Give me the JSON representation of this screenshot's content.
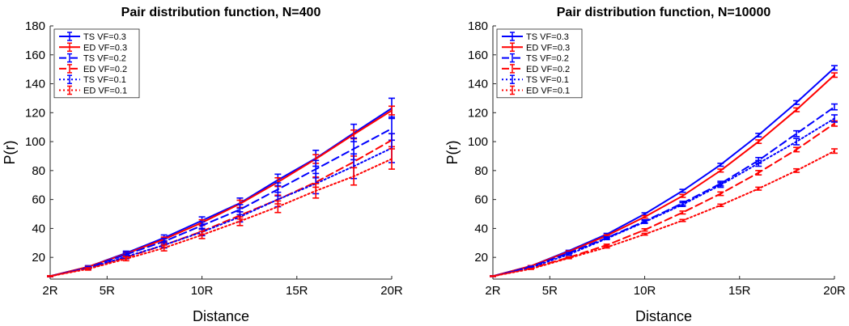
{
  "chart_data": [
    {
      "type": "line",
      "title": "Pair distribution function,  N=400",
      "xlabel": "Distance",
      "ylabel": "P(r)",
      "xlim": [
        2,
        20
      ],
      "ylim": [
        5,
        180
      ],
      "x": [
        2,
        4,
        6,
        8,
        10,
        12,
        14,
        16,
        18,
        20
      ],
      "x_ticks": [
        2,
        5,
        10,
        15,
        20
      ],
      "x_tick_labels": [
        "2R",
        "5R",
        "10R",
        "15R",
        "20R"
      ],
      "y_ticks": [
        20,
        40,
        60,
        80,
        100,
        120,
        140,
        160,
        180
      ],
      "y_tick_labels": [
        "20",
        "40",
        "60",
        "80",
        "100",
        "120",
        "140",
        "160",
        "180"
      ],
      "legend_position": "top-left",
      "series": [
        {
          "name": "TS VF=0.3",
          "color": "#0000ff",
          "style": "solid",
          "values": [
            7,
            13.5,
            23,
            33.5,
            45.5,
            57.5,
            73.5,
            88.5,
            106,
            123
          ],
          "errors": [
            0.3,
            0.8,
            1.3,
            2,
            2.5,
            3.5,
            4,
            5.5,
            6,
            7
          ]
        },
        {
          "name": "ED VF=0.3",
          "color": "#ff0000",
          "style": "solid",
          "values": [
            7,
            13.5,
            22.5,
            32.5,
            44,
            57,
            72,
            88,
            105,
            121.5
          ],
          "errors": [
            0.3,
            0.6,
            1,
            1.5,
            2,
            2.5,
            3,
            3,
            3,
            3
          ]
        },
        {
          "name": "TS VF=0.2",
          "color": "#0000ff",
          "style": "dashed",
          "values": [
            7,
            13,
            22,
            31,
            42,
            53,
            67,
            81,
            95,
            109
          ],
          "errors": [
            0.3,
            0.8,
            1.3,
            2,
            2.5,
            3.5,
            4.5,
            6,
            7.5,
            8
          ]
        },
        {
          "name": "ED VF=0.2",
          "color": "#ff0000",
          "style": "dashed",
          "values": [
            7,
            12.5,
            20,
            28.5,
            38,
            49,
            60,
            72,
            86,
            101
          ],
          "errors": [
            0.3,
            0.6,
            1,
            1.5,
            2,
            2.5,
            3,
            3.5,
            4,
            4.5
          ]
        },
        {
          "name": "TS VF=0.1",
          "color": "#0000ff",
          "style": "dotted",
          "values": [
            7,
            12.5,
            20.5,
            28.5,
            37.5,
            48,
            60,
            71,
            83,
            95.5
          ],
          "errors": [
            0.3,
            0.8,
            1.3,
            2,
            2.5,
            3.5,
            5,
            7,
            8.5,
            10
          ]
        },
        {
          "name": "ED VF=0.1",
          "color": "#ff0000",
          "style": "dotted",
          "values": [
            7,
            12,
            19,
            26.5,
            35.5,
            45,
            55,
            66,
            76,
            88
          ],
          "errors": [
            0.3,
            0.8,
            1.3,
            2,
            2.5,
            3,
            4,
            5,
            6,
            7
          ]
        }
      ]
    },
    {
      "type": "line",
      "title": "Pair distribution function,  N=10000",
      "xlabel": "Distance",
      "ylabel": "P(r)",
      "xlim": [
        2,
        20
      ],
      "ylim": [
        5,
        180
      ],
      "x": [
        2,
        4,
        6,
        8,
        10,
        12,
        14,
        16,
        18,
        20
      ],
      "x_ticks": [
        2,
        5,
        10,
        15,
        20
      ],
      "x_tick_labels": [
        "2R",
        "5R",
        "10R",
        "15R",
        "20R"
      ],
      "y_ticks": [
        20,
        40,
        60,
        80,
        100,
        120,
        140,
        160,
        180
      ],
      "y_tick_labels": [
        "20",
        "40",
        "60",
        "80",
        "100",
        "120",
        "140",
        "160",
        "180"
      ],
      "legend_position": "top-left",
      "series": [
        {
          "name": "TS VF=0.3",
          "color": "#0000ff",
          "style": "solid",
          "values": [
            7,
            14,
            24.5,
            36,
            50,
            66,
            84,
            104.5,
            127,
            151
          ],
          "errors": [
            0.2,
            0.3,
            0.4,
            0.6,
            0.8,
            1,
            1,
            1.2,
            1.3,
            1.5
          ]
        },
        {
          "name": "ED VF=0.3",
          "color": "#ff0000",
          "style": "solid",
          "values": [
            7,
            14,
            24,
            35,
            48,
            62.5,
            80,
            100,
            122,
            146
          ],
          "errors": [
            0.2,
            0.3,
            0.4,
            0.6,
            0.8,
            1,
            1,
            1.2,
            1.3,
            1.5
          ]
        },
        {
          "name": "TS VF=0.2",
          "color": "#0000ff",
          "style": "dashed",
          "values": [
            7,
            13.5,
            23,
            33.5,
            45,
            57.5,
            71,
            87,
            105.5,
            124
          ],
          "errors": [
            0.2,
            0.3,
            0.5,
            0.7,
            1,
            1.3,
            1.6,
            2,
            2,
            2
          ]
        },
        {
          "name": "ED VF=0.2",
          "color": "#ff0000",
          "style": "dashed",
          "values": [
            7,
            12.5,
            20,
            28.5,
            39,
            51,
            64,
            78.5,
            94.5,
            112.5
          ],
          "errors": [
            0.2,
            0.3,
            0.4,
            0.6,
            0.8,
            1,
            1.2,
            1.5,
            1.5,
            1.8
          ]
        },
        {
          "name": "TS VF=0.1",
          "color": "#0000ff",
          "style": "dotted",
          "values": [
            7,
            13,
            22,
            33,
            44.5,
            56.5,
            70,
            85,
            100,
            116
          ],
          "errors": [
            0.2,
            0.3,
            0.5,
            0.7,
            1,
            1.3,
            1.6,
            2,
            2.2,
            2.5
          ]
        },
        {
          "name": "ED VF=0.1",
          "color": "#ff0000",
          "style": "dotted",
          "values": [
            7,
            12,
            19.5,
            27,
            36,
            45.5,
            56,
            67.5,
            80,
            93.5
          ],
          "errors": [
            0.2,
            0.3,
            0.4,
            0.5,
            0.6,
            0.7,
            0.8,
            1,
            1.2,
            1.5
          ]
        }
      ]
    }
  ]
}
